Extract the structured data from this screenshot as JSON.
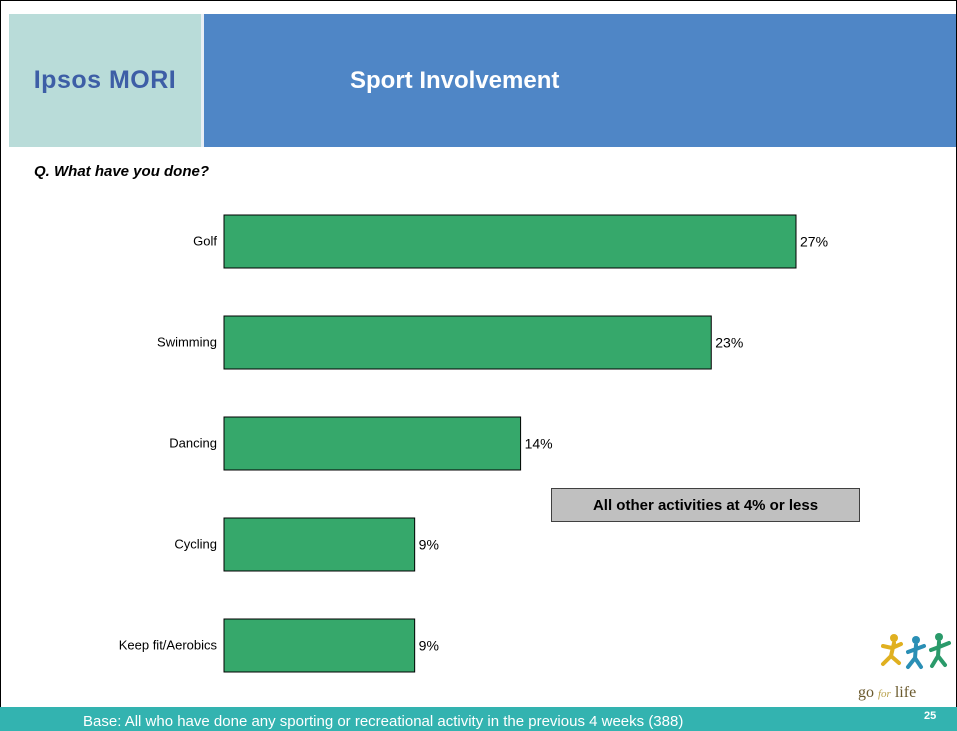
{
  "header": {
    "logo": "Ipsos MORI",
    "title": "Sport Involvement"
  },
  "question": "Q. What have you done?",
  "callout": "All other activities at 4% or less",
  "footer": {
    "base": "Base: All who have done any sporting or recreational activity in the previous 4 weeks (388)",
    "page_number": "25"
  },
  "brand_logo": {
    "text_go": "go",
    "text_for": "for",
    "text_life": "life",
    "icon": "running-figures-icon"
  },
  "colors": {
    "bar": "#36a86b",
    "header_blue": "#4f86c6",
    "logo_panel": "#b9dcd9",
    "footer_teal": "#33b3b0"
  },
  "chart_data": {
    "type": "bar",
    "orientation": "horizontal",
    "categories": [
      "Golf",
      "Swimming",
      "Dancing",
      "Cycling",
      "Keep fit/Aerobics"
    ],
    "values": [
      27,
      23,
      14,
      9,
      9
    ],
    "data_labels": [
      "27%",
      "23%",
      "14%",
      "9%",
      "9%"
    ],
    "title": "",
    "xlabel": "",
    "ylabel": "",
    "xlim": [
      0,
      27
    ],
    "grid": false
  }
}
